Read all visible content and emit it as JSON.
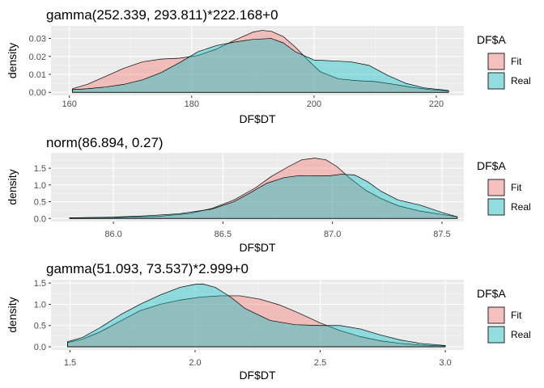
{
  "chart_data": [
    {
      "type": "area",
      "title": "gamma(252.339, 293.811)*222.168+0",
      "xlabel": "DF$DT",
      "ylabel": "density",
      "xlim": [
        157.0,
        224.5
      ],
      "ylim": [
        -0.0017,
        0.037
      ],
      "x_ticks": [
        160,
        180,
        200,
        220
      ],
      "x_tick_labels": [
        "160",
        "180",
        "200",
        "220"
      ],
      "y_ticks": [
        0.0,
        0.01,
        0.02,
        0.03
      ],
      "y_tick_labels": [
        "0.00",
        "0.01",
        "0.02",
        "0.03"
      ],
      "grid": true,
      "legend": {
        "title": "DF$A",
        "position": "right",
        "entries": [
          "Fit",
          "Real"
        ]
      },
      "series": [
        {
          "name": "Fit",
          "fill": "#F8766D",
          "x": [
            160.5,
            163,
            166,
            169,
            172,
            175,
            178,
            181,
            184,
            187,
            190,
            191.5,
            193,
            195,
            197,
            199,
            201,
            204,
            207,
            210,
            213,
            216,
            219,
            222
          ],
          "y": [
            0.002,
            0.0045,
            0.009,
            0.0135,
            0.017,
            0.0185,
            0.019,
            0.0205,
            0.024,
            0.029,
            0.0335,
            0.0345,
            0.034,
            0.031,
            0.025,
            0.018,
            0.0115,
            0.0075,
            0.0065,
            0.006,
            0.0045,
            0.0028,
            0.0015,
            0.0008
          ]
        },
        {
          "name": "Real",
          "fill": "#00BFC4",
          "x": [
            160.5,
            163,
            166,
            169,
            172,
            175,
            178,
            181,
            184,
            187,
            190,
            193,
            195,
            197,
            200,
            203,
            206,
            209,
            212,
            215,
            218,
            222
          ],
          "y": [
            0.0015,
            0.002,
            0.003,
            0.0045,
            0.007,
            0.011,
            0.0165,
            0.0225,
            0.026,
            0.028,
            0.0295,
            0.03,
            0.0275,
            0.0225,
            0.018,
            0.0175,
            0.017,
            0.015,
            0.0095,
            0.005,
            0.0025,
            0.001
          ]
        }
      ]
    },
    {
      "type": "area",
      "title": "norm(86.894, 0.27)",
      "xlabel": "DF$DT",
      "ylabel": "density",
      "xlim": [
        85.715,
        87.6
      ],
      "ylim": [
        -0.09,
        1.96
      ],
      "x_ticks": [
        86.0,
        86.5,
        87.0,
        87.5
      ],
      "x_tick_labels": [
        "86.0",
        "86.5",
        "87.0",
        "87.5"
      ],
      "y_ticks": [
        0.0,
        0.5,
        1.0,
        1.5
      ],
      "y_tick_labels": [
        "0.0",
        "0.5",
        "1.0",
        "1.5"
      ],
      "grid": true,
      "legend": {
        "title": "DF$A",
        "position": "right",
        "entries": [
          "Fit",
          "Real"
        ]
      },
      "series": [
        {
          "name": "Fit",
          "fill": "#F8766D",
          "x": [
            85.8,
            86.0,
            86.2,
            86.35,
            86.45,
            86.55,
            86.65,
            86.72,
            86.8,
            86.86,
            86.92,
            86.97,
            87.02,
            87.08,
            87.15,
            87.22,
            87.3,
            87.4,
            87.5,
            87.57
          ],
          "y": [
            0.02,
            0.03,
            0.06,
            0.15,
            0.3,
            0.55,
            0.92,
            1.25,
            1.55,
            1.75,
            1.8,
            1.75,
            1.55,
            1.2,
            0.85,
            0.6,
            0.38,
            0.22,
            0.12,
            0.05
          ]
        },
        {
          "name": "Real",
          "fill": "#00BFC4",
          "x": [
            85.8,
            86.0,
            86.15,
            86.3,
            86.45,
            86.55,
            86.62,
            86.7,
            86.78,
            86.85,
            86.92,
            86.98,
            87.04,
            87.1,
            87.16,
            87.22,
            87.3,
            87.4,
            87.5,
            87.57
          ],
          "y": [
            0.02,
            0.04,
            0.08,
            0.14,
            0.28,
            0.5,
            0.75,
            1.05,
            1.22,
            1.28,
            1.27,
            1.27,
            1.32,
            1.3,
            1.1,
            0.82,
            0.55,
            0.4,
            0.18,
            0.05
          ]
        }
      ]
    },
    {
      "type": "area",
      "title": "gamma(51.093, 73.537)*2.999+0",
      "xlabel": "DF$DT",
      "ylabel": "density",
      "xlim": [
        1.424,
        3.074
      ],
      "ylim": [
        -0.076,
        1.58
      ],
      "x_ticks": [
        1.5,
        2.0,
        2.5,
        3.0
      ],
      "x_tick_labels": [
        "1.5",
        "2.0",
        "2.5",
        "3.0"
      ],
      "y_ticks": [
        0.0,
        0.5,
        1.0,
        1.5
      ],
      "y_tick_labels": [
        "0.0",
        "0.5",
        "1.0",
        "1.5"
      ],
      "grid": true,
      "legend": {
        "title": "DF$A",
        "position": "right",
        "entries": [
          "Fit",
          "Real"
        ]
      },
      "series": [
        {
          "name": "Fit",
          "fill": "#F8766D",
          "x": [
            1.49,
            1.55,
            1.62,
            1.7,
            1.78,
            1.86,
            1.94,
            2.02,
            2.1,
            2.18,
            2.26,
            2.34,
            2.42,
            2.5,
            2.58,
            2.66,
            2.74,
            2.82,
            2.9,
            3.0
          ],
          "y": [
            0.1,
            0.18,
            0.35,
            0.6,
            0.85,
            1.0,
            1.1,
            1.17,
            1.2,
            1.2,
            1.12,
            0.98,
            0.78,
            0.56,
            0.38,
            0.24,
            0.14,
            0.08,
            0.04,
            0.02
          ]
        },
        {
          "name": "Real",
          "fill": "#00BFC4",
          "x": [
            1.49,
            1.55,
            1.62,
            1.7,
            1.78,
            1.86,
            1.94,
            2.0,
            2.03,
            2.08,
            2.14,
            2.2,
            2.3,
            2.4,
            2.5,
            2.58,
            2.66,
            2.74,
            2.82,
            2.9,
            3.0
          ],
          "y": [
            0.12,
            0.22,
            0.45,
            0.75,
            1.0,
            1.22,
            1.4,
            1.47,
            1.48,
            1.4,
            1.18,
            0.9,
            0.62,
            0.52,
            0.5,
            0.5,
            0.42,
            0.28,
            0.16,
            0.08,
            0.03
          ]
        }
      ]
    }
  ]
}
